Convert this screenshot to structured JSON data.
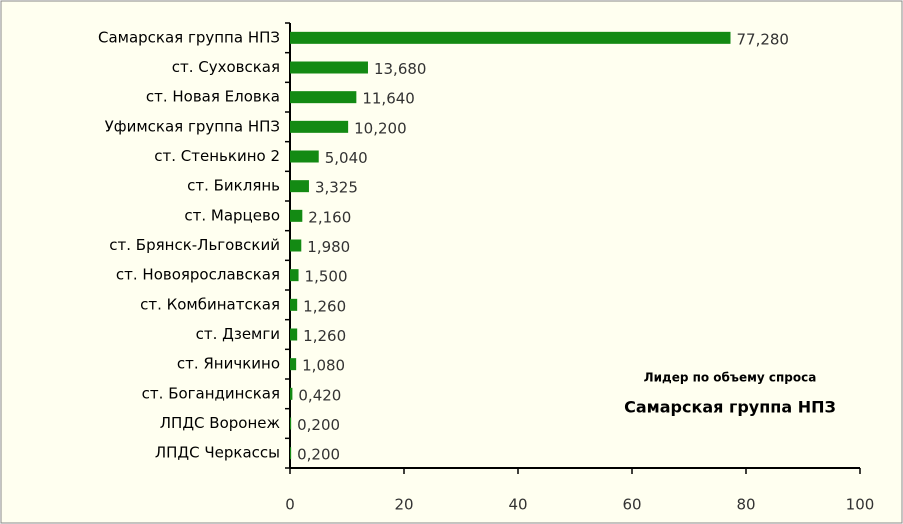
{
  "chart_data": {
    "type": "bar",
    "orientation": "horizontal",
    "color": "#138a13",
    "categories": [
      "Самарская группа НПЗ",
      "ст. Суховская",
      "ст. Новая Еловка",
      "Уфимская группа НПЗ",
      "ст. Стенькино 2",
      "ст. Биклянь",
      "ст. Марцево",
      "ст. Брянск-Льговский",
      "ст. Новоярославская",
      "ст. Комбинатская",
      "ст. Дземги",
      "ст. Яничкино",
      "ст. Богандинская",
      "ЛПДС Воронеж",
      "ЛПДС Черкассы"
    ],
    "values": [
      77.28,
      13.68,
      11.64,
      10.2,
      5.04,
      3.325,
      2.16,
      1.98,
      1.5,
      1.26,
      1.26,
      1.08,
      0.42,
      0.2,
      0.2
    ],
    "value_labels": [
      "77,280",
      "13,680",
      "11,640",
      "10,200",
      "5,040",
      "3,325",
      "2,160",
      "1,980",
      "1,500",
      "1,260",
      "1,260",
      "1,080",
      "0,420",
      "0,200",
      "0,200"
    ],
    "xlim": [
      0,
      100
    ],
    "xticks": [
      0,
      20,
      40,
      60,
      80,
      100
    ],
    "annotations": [
      "Лидер по объему спроса",
      "Самарская группа НПЗ"
    ]
  }
}
